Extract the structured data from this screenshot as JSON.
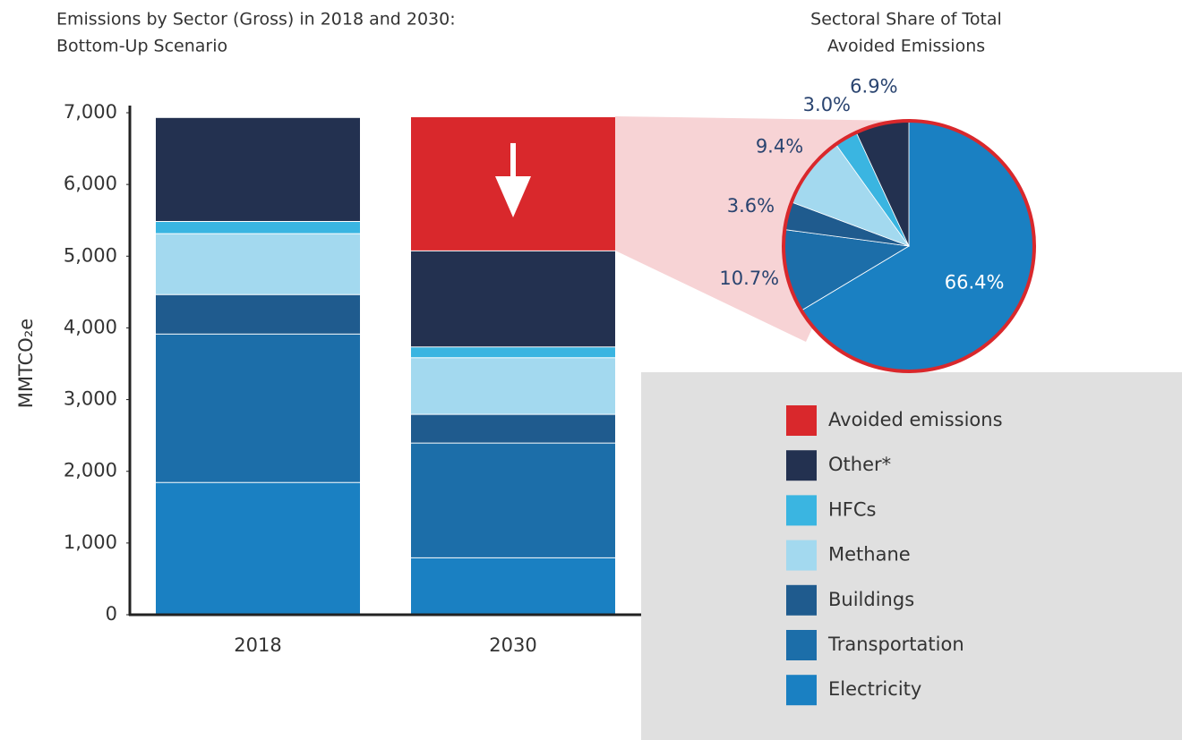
{
  "chart_data": [
    {
      "type": "stacked_bar",
      "title": [
        "Emissions by Sector (Gross) in 2018 and 2030:",
        "Bottom-Up Scenario"
      ],
      "y_label": "MMTCO₂e",
      "categories": [
        "2018",
        "2030"
      ],
      "series": [
        {
          "name": "Electricity",
          "color": "#1a80c2",
          "values": [
            1850,
            800
          ]
        },
        {
          "name": "Transportation",
          "color": "#1c6ea9",
          "values": [
            2070,
            1600
          ]
        },
        {
          "name": "Buildings",
          "color": "#1f5b8e",
          "values": [
            550,
            400
          ]
        },
        {
          "name": "Methane",
          "color": "#a3d9ef",
          "values": [
            850,
            790
          ]
        },
        {
          "name": "HFCs",
          "color": "#3ab5e1",
          "values": [
            170,
            150
          ]
        },
        {
          "name": "Other*",
          "color": "#233150",
          "values": [
            1450,
            1340
          ]
        },
        {
          "name": "Avoided emissions",
          "color": "#d9282c",
          "values": [
            null,
            1870
          ]
        }
      ],
      "ylim": [
        0,
        7000
      ],
      "yticks": [
        0,
        {
          "value": 1000,
          "label": "1,000"
        },
        {
          "value": 2000,
          "label": "2,000"
        },
        {
          "value": 3000,
          "label": "3,000"
        },
        {
          "value": 4000,
          "label": "4,000"
        },
        {
          "value": 5000,
          "label": "5,000"
        },
        {
          "value": 6000,
          "label": "6,000"
        },
        {
          "value": 7000,
          "label": "7,000"
        }
      ]
    },
    {
      "type": "pie",
      "title": [
        "Sectoral Share of Total",
        "Avoided Emissions"
      ],
      "values": [
        66.4,
        10.7,
        3.6,
        9.4,
        3.0,
        6.9
      ],
      "value_labels": [
        "66.4%",
        "10.7%",
        "3.6%",
        "9.4%",
        "3.0%",
        "6.9%"
      ],
      "colors": [
        "#1a80c2",
        "#1c6ea9",
        "#1f5b8e",
        "#a3d9ef",
        "#3ab5e1",
        "#233150"
      ],
      "border_color": "#d9282c"
    }
  ]
}
